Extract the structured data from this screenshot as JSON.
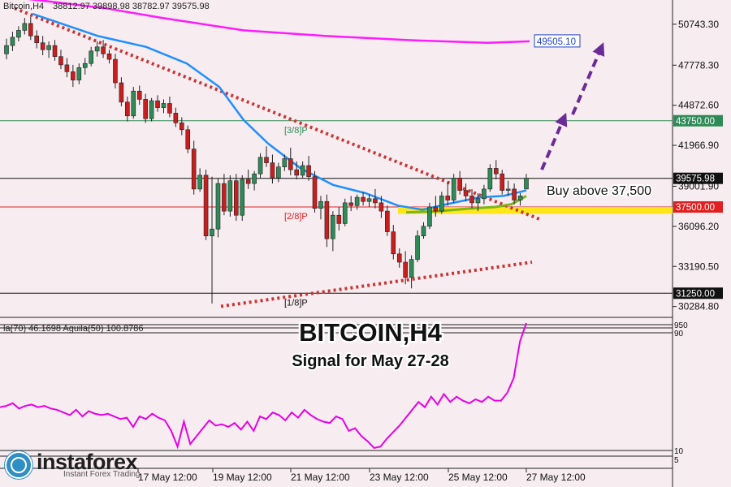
{
  "header": {
    "symbol": "Bitcoin,H4",
    "ohlc": "38812.97 39898.98 38782.97 39575.98"
  },
  "title": "BITCOIN,H4",
  "subtitle": "Signal for May 27-28",
  "brand": {
    "name": "instaforex",
    "tagline": "Instant Forex Trading"
  },
  "annotations": {
    "buy_text": "Buy above 37,500"
  },
  "indicator": {
    "readout": "la(70) 46.1698  Aguila(50) 100.8786",
    "levels": [
      "950",
      "90",
      "10",
      "5"
    ],
    "color": "#e600e6",
    "values": [
      36,
      37,
      39,
      35,
      37,
      38,
      36,
      37,
      35,
      34,
      32,
      30,
      34,
      29,
      33,
      31,
      30,
      31,
      29,
      27,
      28,
      21,
      29,
      27,
      31,
      28,
      26,
      18,
      6,
      25,
      8,
      14,
      20,
      26,
      22,
      23,
      21,
      24,
      19,
      25,
      18,
      29,
      27,
      32,
      30,
      26,
      32,
      28,
      34,
      30,
      27,
      25,
      24,
      29,
      27,
      18,
      20,
      14,
      10,
      5,
      6,
      12,
      17,
      22,
      28,
      34,
      40,
      36,
      44,
      38,
      46,
      40,
      44,
      41,
      39,
      42,
      40,
      44,
      41,
      41,
      47,
      58,
      86,
      100
    ]
  },
  "time_axis": [
    "17 May 12:00",
    "19 May 12:00",
    "21 May 12:00",
    "23 May 12:00",
    "25 May 12:00",
    "27 May 12:00"
  ],
  "chart_data": {
    "type": "candlestick",
    "title": "BITCOIN,H4",
    "subtitle": "Signal for May 27-28",
    "ylim": [
      29500,
      52500
    ],
    "y_ticks": [
      "50743.30",
      "47778.30",
      "44872.60",
      "41966.90",
      "39001.90",
      "36096.20",
      "33190.50",
      "30284.80"
    ],
    "x_labels": [
      "17 May 12:00",
      "19 May 12:00",
      "21 May 12:00",
      "23 May 12:00",
      "25 May 12:00",
      "27 May 12:00"
    ],
    "candles": [
      [
        48600,
        49700,
        48200,
        49200
      ],
      [
        49200,
        50200,
        48800,
        49800
      ],
      [
        49800,
        50600,
        49500,
        50300
      ],
      [
        50300,
        51200,
        50000,
        50800
      ],
      [
        50800,
        51300,
        49600,
        49900
      ],
      [
        49900,
        50300,
        49000,
        49400
      ],
      [
        49400,
        49900,
        48500,
        48900
      ],
      [
        48900,
        49500,
        48300,
        49200
      ],
      [
        49200,
        49600,
        48100,
        48400
      ],
      [
        48400,
        48900,
        47500,
        47800
      ],
      [
        47800,
        48300,
        46900,
        47300
      ],
      [
        47300,
        47800,
        46200,
        46700
      ],
      [
        46700,
        47900,
        46400,
        47600
      ],
      [
        47600,
        48300,
        47100,
        47900
      ],
      [
        47900,
        49100,
        47700,
        48800
      ],
      [
        48800,
        49500,
        48400,
        49100
      ],
      [
        49100,
        49600,
        48300,
        48600
      ],
      [
        48600,
        48900,
        47900,
        48200
      ],
      [
        48200,
        48600,
        46100,
        46500
      ],
      [
        46500,
        46900,
        44800,
        45100
      ],
      [
        45100,
        45500,
        43700,
        44100
      ],
      [
        44100,
        46200,
        43900,
        45900
      ],
      [
        45900,
        46300,
        44900,
        45300
      ],
      [
        45300,
        45700,
        43600,
        43900
      ],
      [
        43900,
        45400,
        43700,
        45200
      ],
      [
        45200,
        45600,
        44400,
        44700
      ],
      [
        44700,
        45300,
        44300,
        45000
      ],
      [
        45000,
        45500,
        44000,
        44300
      ],
      [
        44300,
        44700,
        43300,
        43600
      ],
      [
        43600,
        44000,
        42700,
        43100
      ],
      [
        43100,
        43400,
        41400,
        41700
      ],
      [
        41700,
        42300,
        38400,
        38800
      ],
      [
        38800,
        40300,
        38600,
        39800
      ],
      [
        39800,
        40200,
        35100,
        35400
      ],
      [
        35400,
        39700,
        30500,
        35900
      ],
      [
        35900,
        39600,
        35300,
        39200
      ],
      [
        39200,
        39900,
        36900,
        37200
      ],
      [
        37200,
        39800,
        36800,
        39400
      ],
      [
        39400,
        39900,
        36500,
        36900
      ],
      [
        36900,
        39800,
        36500,
        39500
      ],
      [
        39500,
        40200,
        38800,
        39200
      ],
      [
        39200,
        40100,
        38700,
        39900
      ],
      [
        39900,
        41400,
        39600,
        41100
      ],
      [
        41100,
        41900,
        40400,
        40700
      ],
      [
        40700,
        41300,
        39200,
        39600
      ],
      [
        39600,
        40700,
        39300,
        40400
      ],
      [
        40400,
        41300,
        40100,
        41000
      ],
      [
        41000,
        41800,
        39800,
        40200
      ],
      [
        40200,
        40800,
        39500,
        39800
      ],
      [
        39800,
        40800,
        39600,
        40500
      ],
      [
        40500,
        41200,
        39400,
        39700
      ],
      [
        39700,
        40100,
        37100,
        37400
      ],
      [
        37400,
        38300,
        36600,
        37900
      ],
      [
        37900,
        38400,
        34600,
        35200
      ],
      [
        35200,
        37200,
        34300,
        36900
      ],
      [
        36900,
        37500,
        35800,
        36300
      ],
      [
        36300,
        38100,
        36100,
        37800
      ],
      [
        37800,
        38300,
        37200,
        37600
      ],
      [
        37600,
        38400,
        37300,
        38200
      ],
      [
        38200,
        38600,
        37600,
        37900
      ],
      [
        37900,
        38400,
        37500,
        38100
      ],
      [
        38100,
        38800,
        37400,
        37800
      ],
      [
        37800,
        38300,
        36700,
        37200
      ],
      [
        37200,
        37600,
        35400,
        35700
      ],
      [
        35700,
        36200,
        33700,
        34100
      ],
      [
        34100,
        34500,
        33100,
        33500
      ],
      [
        33500,
        34300,
        31900,
        32400
      ],
      [
        32400,
        34000,
        31600,
        33700
      ],
      [
        33700,
        35800,
        33500,
        35400
      ],
      [
        35400,
        36400,
        35200,
        36100
      ],
      [
        36100,
        37800,
        35900,
        37500
      ],
      [
        37500,
        38300,
        36800,
        37200
      ],
      [
        37200,
        38600,
        37000,
        38300
      ],
      [
        38300,
        39300,
        37600,
        38000
      ],
      [
        38000,
        39900,
        37800,
        39600
      ],
      [
        39600,
        40100,
        38400,
        38700
      ],
      [
        38700,
        39200,
        37900,
        38300
      ],
      [
        38300,
        38800,
        37400,
        37800
      ],
      [
        37800,
        38500,
        37200,
        38100
      ],
      [
        38100,
        39100,
        37700,
        38800
      ],
      [
        38800,
        40600,
        38600,
        40300
      ],
      [
        40300,
        40900,
        39500,
        39900
      ],
      [
        39900,
        40200,
        38400,
        38700
      ],
      [
        38700,
        39400,
        38300,
        38800
      ],
      [
        38800,
        39200,
        37700,
        38000
      ],
      [
        38000,
        38500,
        37600,
        38300
      ],
      [
        38800,
        39900,
        38800,
        39576
      ]
    ],
    "series": [
      {
        "name": "",
        "color": "#ff1aff",
        "values": [
          [
            0,
            52800
          ],
          [
            60,
            52400
          ],
          [
            130,
            51900
          ],
          [
            200,
            51200
          ],
          [
            300,
            50300
          ],
          [
            400,
            49900
          ],
          [
            500,
            49600
          ],
          [
            600,
            49400
          ],
          [
            652,
            49505
          ]
        ]
      },
      {
        "name": "",
        "color": "#1e90ff",
        "values": [
          [
            40,
            51500
          ],
          [
            80,
            50700
          ],
          [
            120,
            49900
          ],
          [
            180,
            49100
          ],
          [
            230,
            47900
          ],
          [
            270,
            46200
          ],
          [
            300,
            43800
          ],
          [
            330,
            42100
          ],
          [
            370,
            40300
          ],
          [
            410,
            39100
          ],
          [
            450,
            38500
          ],
          [
            490,
            37600
          ],
          [
            520,
            37300
          ],
          [
            550,
            37700
          ],
          [
            590,
            38200
          ],
          [
            620,
            38300
          ],
          [
            648,
            38700
          ]
        ]
      },
      {
        "name": "",
        "color": "#7cb518",
        "values": [
          [
            500,
            37100
          ],
          [
            540,
            37200
          ],
          [
            580,
            37400
          ],
          [
            610,
            37500
          ],
          [
            630,
            37700
          ],
          [
            648,
            38300
          ]
        ]
      }
    ],
    "levels": [
      {
        "label": "[3/8]P",
        "value": 43750,
        "color": "#2e8b57",
        "tag": "43750.00",
        "tag_bg": "#2e8b57"
      },
      {
        "label": "[2/8]P",
        "value": 37500,
        "color": "#e02020",
        "tag": "37500.00",
        "tag_bg": "#e02020"
      },
      {
        "label": "[1/8]P",
        "value": 31250,
        "color": "#111111",
        "tag": "31250.00",
        "tag_bg": "#111111"
      },
      {
        "label": "",
        "value": 39575.98,
        "color": "#111111",
        "tag": "39575.98",
        "tag_bg": "#111111"
      }
    ],
    "ma_tag": "49505.10",
    "support_zone": [
      37000,
      37500
    ],
    "trend_lines": [
      {
        "from": [
          18,
          51900
        ],
        "to": [
          665,
          36600
        ],
        "color": "#cc3333"
      },
      {
        "from": [
          272,
          30300
        ],
        "to": [
          655,
          33500
        ],
        "color": "#cc3333"
      }
    ],
    "arrows": [
      {
        "from": [
          667,
          40200
        ],
        "to": [
          694,
          43900
        ],
        "color": "#6a2b99"
      },
      {
        "from": [
          705,
          44200
        ],
        "to": [
          740,
          49000
        ],
        "color": "#6a2b99"
      }
    ],
    "legend": "none",
    "grid": false
  }
}
